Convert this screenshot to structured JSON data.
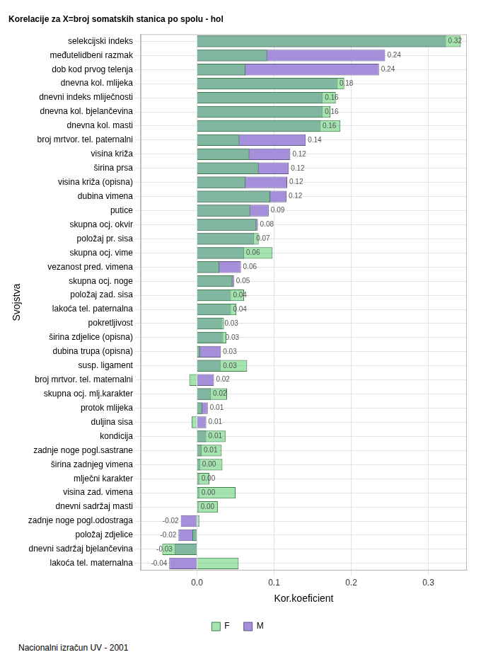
{
  "chart_data": {
    "type": "bar",
    "orientation": "horizontal",
    "title": "Korelacije za X=broj somatskih stanica po spolu - hol",
    "xlabel": "Kor.koeficient",
    "ylabel": "Svojstva",
    "footnote": "Nacionalni izračun UV - 2001",
    "categories": [
      "selekcijski indeks",
      "međutelidbeni razmak",
      "dob kod prvog telenja",
      "dnevna kol. mlijeka",
      "dnevni indeks mliječnosti",
      "dnevna kol. bjelančevina",
      "dnevna kol. masti",
      "broj mrtvor. tel. paternalni",
      "visina križa",
      "širina prsa",
      "visina križa (opisna)",
      "dubina vimena",
      "putice",
      "skupna ocj. okvir",
      "položaj pr. sisa",
      "skupna ocj. vime",
      "vezanost pred. vimena",
      "skupna ocj. noge",
      "položaj zad. sisa",
      "lakoća tel. paternalna",
      "pokretljivost",
      "širina zdjelice (opisna)",
      "dubina trupa (opisna)",
      "susp. ligament",
      "broj mrtvor. tel. maternalni",
      "skupna ocj. mlj.karakter",
      "protok mlijeka",
      "duljina sisa",
      "kondicija",
      "zadnje noge pogl.sastrane",
      "širina zadnjeg vimena",
      "mlječni karakter",
      "visina zad. vimena",
      "dnevni sadržaj masti",
      "zadnje noge pogl.odostraga",
      "položaj zdjelice",
      "dnevni sadržaj bjelančevina",
      "lakoća tel. maternalna"
    ],
    "series": [
      {
        "name": "M",
        "color": "#A58FDB",
        "values": [
          0.323,
          0.244,
          0.236,
          0.182,
          0.163,
          0.163,
          0.16,
          0.141,
          0.121,
          0.119,
          0.117,
          0.116,
          0.093,
          0.079,
          0.074,
          0.061,
          0.057,
          0.048,
          0.044,
          0.044,
          0.033,
          0.034,
          0.031,
          0.031,
          0.022,
          0.018,
          0.014,
          0.012,
          0.012,
          0.006,
          0.004,
          0.003,
          0.003,
          0.002,
          -0.021,
          -0.024,
          -0.029,
          -0.036
        ],
        "value_labels": [
          "0.32",
          "0.24",
          "0.24",
          "0.18",
          "0.16",
          "0.16",
          "0.16",
          "0.14",
          "0.12",
          "0.12",
          "0.12",
          "0.12",
          "0.09",
          "0.08",
          "0.07",
          "0.06",
          "0.06",
          "0.05",
          "0.04",
          "0.04",
          "0.03",
          "0.03",
          "0.03",
          "0.03",
          "0.02",
          "0.02",
          "0.01",
          "0.01",
          "0.01",
          "0.01",
          "0.00",
          "0.00",
          "0.00",
          "0.00",
          "-0.02",
          "-0.02",
          "-0.03",
          "-0.04"
        ]
      },
      {
        "name": "F",
        "color": "#69D07A",
        "values": [
          0.342,
          0.091,
          0.063,
          0.191,
          0.18,
          0.173,
          0.186,
          0.055,
          0.068,
          0.08,
          0.063,
          0.095,
          0.069,
          0.077,
          0.08,
          0.098,
          0.029,
          0.046,
          0.061,
          0.051,
          0.035,
          0.038,
          0.004,
          0.065,
          -0.01,
          0.039,
          0.007,
          -0.007,
          0.037,
          0.032,
          0.033,
          0.016,
          0.05,
          0.027,
          0.003,
          -0.006,
          -0.045,
          0.054
        ]
      }
    ],
    "xlim": [
      -0.073,
      0.35
    ],
    "xticks": [
      {
        "value": 0,
        "label": "0.0"
      },
      {
        "value": 0.1,
        "label": "0.1"
      },
      {
        "value": 0.2,
        "label": "0.2"
      },
      {
        "value": 0.3,
        "label": "0.3"
      }
    ],
    "grid": true,
    "legend": "bottom",
    "data_labels": true
  }
}
